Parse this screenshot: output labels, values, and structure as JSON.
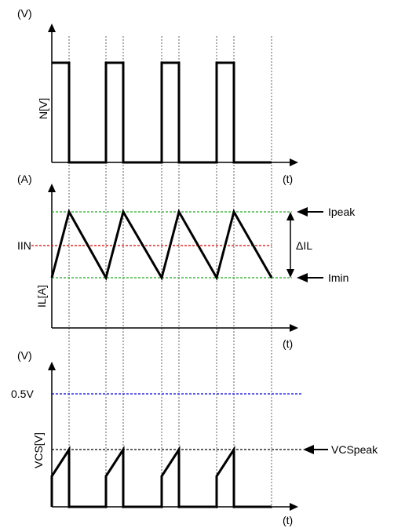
{
  "panels": {
    "top": {
      "y_unit": "(V)",
      "y_label": "N[V]",
      "x_unit": "(t)"
    },
    "middle": {
      "y_unit": "(A)",
      "y_label": "IL[A]",
      "x_unit": "(t)",
      "level_label": "IIN",
      "annotations": {
        "peak": "Ipeak",
        "min": "Imin",
        "delta": "ΔIL"
      }
    },
    "bottom": {
      "y_unit": "(V)",
      "y_label": "VCS[V]",
      "x_unit": "(t)",
      "ref_label": "0.5V",
      "annotation_peak": "VCSpeak"
    }
  },
  "colors": {
    "axis": "#000000",
    "waveform": "#000000",
    "vertical_guides": "#606060",
    "peak_min_lines": "#22aa22",
    "iin_line": "#dd0000",
    "ref_line": "#0000dd",
    "vcspeak_line": "#000000"
  }
}
